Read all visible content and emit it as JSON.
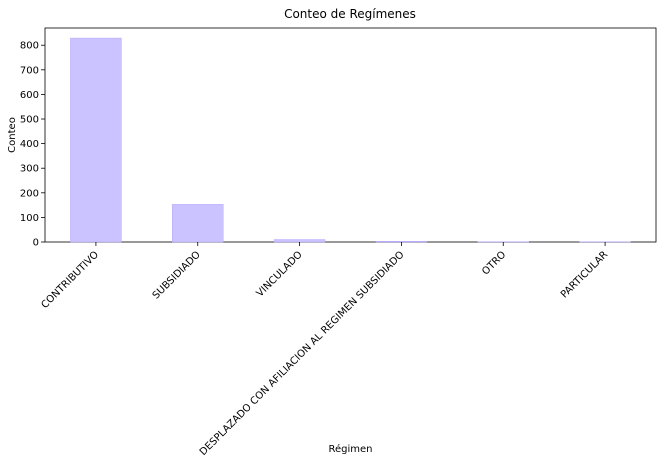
{
  "chart_data": {
    "type": "bar",
    "title": "Conteo de Regímenes",
    "xlabel": "Régimen",
    "ylabel": "Conteo",
    "categories": [
      "CONTRIBUTIVO",
      "SUBSIDIADO",
      "VINCULADO",
      "DESPLAZADO CON AFILIACION AL REGIMEN SUBSIDIADO",
      "OTRO",
      "PARTICULAR"
    ],
    "values": [
      829,
      153,
      10,
      3,
      1,
      1
    ],
    "ylim": [
      0,
      870
    ],
    "yticks": [
      0,
      100,
      200,
      300,
      400,
      500,
      600,
      700,
      800
    ],
    "grid": false,
    "bar_color": "#cbc3ff",
    "bar_edge_color": "#b3a8ff"
  }
}
